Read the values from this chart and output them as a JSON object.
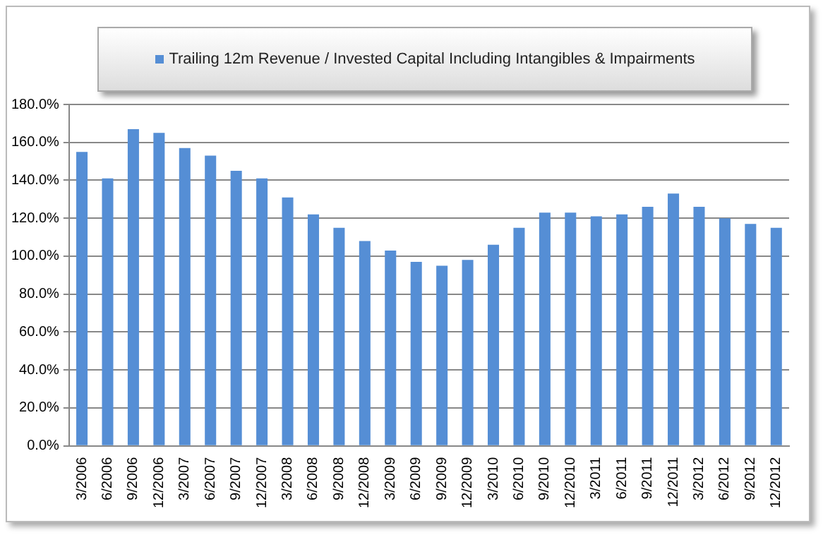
{
  "chart_data": {
    "type": "bar",
    "categories": [
      "3/2006",
      "6/2006",
      "9/2006",
      "12/2006",
      "3/2007",
      "6/2007",
      "9/2007",
      "12/2007",
      "3/2008",
      "6/2008",
      "9/2008",
      "12/2008",
      "3/2009",
      "6/2009",
      "9/2009",
      "12/2009",
      "3/2010",
      "6/2010",
      "9/2010",
      "12/2010",
      "3/2011",
      "6/2011",
      "9/2011",
      "12/2011",
      "3/2012",
      "6/2012",
      "9/2012",
      "12/2012"
    ],
    "series": [
      {
        "name": "Trailing 12m Revenue / Invested Capital Including Intangibles & Impairments",
        "color": "#558ed5",
        "values": [
          155,
          141,
          167,
          165,
          157,
          153,
          145,
          141,
          131,
          122,
          115,
          108,
          103,
          97,
          95,
          98,
          106,
          115,
          123,
          123,
          121,
          122,
          126,
          133,
          126,
          120,
          117,
          115
        ]
      }
    ],
    "ylim": [
      0,
      180
    ],
    "yticks": [
      {
        "value": 0,
        "label": "0.0%"
      },
      {
        "value": 20,
        "label": "20.0%"
      },
      {
        "value": 40,
        "label": "40.0%"
      },
      {
        "value": 60,
        "label": "60.0%"
      },
      {
        "value": 80,
        "label": "80.0%"
      },
      {
        "value": 100,
        "label": "100.0%"
      },
      {
        "value": 120,
        "label": "120.0%"
      },
      {
        "value": 140,
        "label": "140.0%"
      },
      {
        "value": 160,
        "label": "160.0%"
      },
      {
        "value": 180,
        "label": "180.0%"
      }
    ],
    "grid": "y",
    "legend": "top"
  }
}
